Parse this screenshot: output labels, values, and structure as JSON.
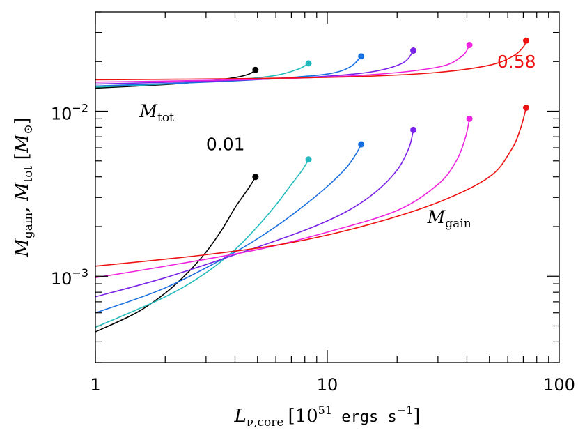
{
  "chart_data": {
    "type": "line",
    "xscale": "log",
    "yscale": "log",
    "xlim": [
      1,
      100
    ],
    "ylim": [
      0.0003,
      0.04
    ],
    "grid": false,
    "x_tick_labels": [
      {
        "value": 1,
        "label": "1"
      },
      {
        "value": 10,
        "label": "10"
      },
      {
        "value": 100,
        "label": "100"
      }
    ],
    "y_tick_labels": [
      {
        "value": 0.01,
        "base": "10",
        "exp": "−2"
      },
      {
        "value": 0.001,
        "base": "10",
        "exp": "−3"
      }
    ],
    "xlabel": {
      "sym": "L",
      "sub": "ν,core",
      "unit_open": "[10",
      "unit_sup": "51",
      "unit_mid": " ergs s",
      "unit_sup2": "−1",
      "unit_close": "]"
    },
    "ylabel": {
      "sym1": "M",
      "sub1": "gain",
      "sep": ",  ",
      "sym2": "M",
      "sub2": "tot",
      "unit_open": " [",
      "unit_sym": "M",
      "unit_sub": "⊙",
      "unit_close": "]"
    },
    "annotations": [
      {
        "id": "mtot",
        "sym": "M",
        "sub": "tot",
        "color": "#000000",
        "x": 1.55,
        "y": 0.0092
      },
      {
        "id": "mgain",
        "sym": "M",
        "sub": "gain",
        "color": "#000000",
        "x": 27,
        "y": 0.0021
      },
      {
        "id": "low",
        "text": "0.01",
        "color": "#000000",
        "x": 3.0,
        "y": 0.0058
      },
      {
        "id": "high",
        "text": "0.58",
        "color": "#ee1111",
        "x": 54,
        "y": 0.0184
      }
    ],
    "series": [
      {
        "color": "#000000",
        "tot": [
          [
            1,
            0.0138
          ],
          [
            2,
            0.0145
          ],
          [
            3,
            0.0152
          ],
          [
            4,
            0.016
          ],
          [
            4.6,
            0.0168
          ],
          [
            4.9,
            0.0178
          ]
        ],
        "gain": [
          [
            1,
            0.00046
          ],
          [
            1.5,
            0.0006
          ],
          [
            2,
            0.00079
          ],
          [
            2.5,
            0.00105
          ],
          [
            3,
            0.0014
          ],
          [
            3.5,
            0.0019
          ],
          [
            4,
            0.0026
          ],
          [
            4.5,
            0.0033
          ],
          [
            4.75,
            0.0037
          ],
          [
            4.9,
            0.004
          ]
        ],
        "end_tot": [
          4.9,
          0.0178
        ],
        "end_gain": [
          4.9,
          0.004
        ]
      },
      {
        "color": "#22bbbb",
        "tot": [
          [
            1,
            0.014
          ],
          [
            2,
            0.0146
          ],
          [
            4,
            0.0155
          ],
          [
            6,
            0.0165
          ],
          [
            7.5,
            0.018
          ],
          [
            8.3,
            0.0195
          ]
        ],
        "gain": [
          [
            1,
            0.00049
          ],
          [
            2,
            0.00075
          ],
          [
            3,
            0.00105
          ],
          [
            4,
            0.00145
          ],
          [
            5,
            0.002
          ],
          [
            6,
            0.0027
          ],
          [
            7,
            0.0036
          ],
          [
            7.8,
            0.0044
          ],
          [
            8.3,
            0.0051
          ]
        ],
        "end_tot": [
          8.3,
          0.0195
        ],
        "end_gain": [
          8.3,
          0.0051
        ]
      },
      {
        "color": "#1a6fdf",
        "tot": [
          [
            1,
            0.0142
          ],
          [
            3,
            0.015
          ],
          [
            6,
            0.0158
          ],
          [
            10,
            0.0168
          ],
          [
            12.5,
            0.0185
          ],
          [
            14,
            0.0215
          ]
        ],
        "gain": [
          [
            1,
            0.0006
          ],
          [
            2,
            0.00085
          ],
          [
            4,
            0.0014
          ],
          [
            6,
            0.002
          ],
          [
            8,
            0.0027
          ],
          [
            10,
            0.0035
          ],
          [
            12,
            0.0045
          ],
          [
            13.3,
            0.0055
          ],
          [
            14,
            0.0063
          ]
        ],
        "end_tot": [
          14,
          0.0215
        ],
        "end_gain": [
          14,
          0.0063
        ]
      },
      {
        "color": "#7a22e8",
        "tot": [
          [
            1,
            0.0146
          ],
          [
            3,
            0.0152
          ],
          [
            8,
            0.016
          ],
          [
            15,
            0.0172
          ],
          [
            21,
            0.0195
          ],
          [
            23.5,
            0.0233
          ]
        ],
        "gain": [
          [
            1,
            0.00075
          ],
          [
            2,
            0.00098
          ],
          [
            4,
            0.00135
          ],
          [
            8,
            0.0019
          ],
          [
            12,
            0.00245
          ],
          [
            16,
            0.0032
          ],
          [
            20,
            0.0044
          ],
          [
            22.5,
            0.006
          ],
          [
            23.5,
            0.0077
          ]
        ],
        "end_tot": [
          23.5,
          0.0233
        ],
        "end_gain": [
          23.5,
          0.0077
        ]
      },
      {
        "color": "#ee22dd",
        "tot": [
          [
            1,
            0.015
          ],
          [
            5,
            0.0156
          ],
          [
            15,
            0.0166
          ],
          [
            30,
            0.0185
          ],
          [
            38,
            0.0215
          ],
          [
            41,
            0.0252
          ]
        ],
        "gain": [
          [
            1,
            0.00098
          ],
          [
            2,
            0.00115
          ],
          [
            5,
            0.00145
          ],
          [
            10,
            0.00185
          ],
          [
            20,
            0.0025
          ],
          [
            30,
            0.0036
          ],
          [
            36,
            0.005
          ],
          [
            39.5,
            0.007
          ],
          [
            41,
            0.009
          ]
        ],
        "end_tot": [
          41,
          0.0252
        ],
        "end_gain": [
          41,
          0.009
        ]
      },
      {
        "color": "#ee1111",
        "tot": [
          [
            1,
            0.0155
          ],
          [
            5,
            0.0158
          ],
          [
            15,
            0.0163
          ],
          [
            30,
            0.0172
          ],
          [
            50,
            0.019
          ],
          [
            63,
            0.0215
          ],
          [
            70,
            0.0245
          ],
          [
            72,
            0.0268
          ]
        ],
        "gain": [
          [
            1,
            0.00115
          ],
          [
            3,
            0.00135
          ],
          [
            7,
            0.0016
          ],
          [
            15,
            0.00205
          ],
          [
            30,
            0.0028
          ],
          [
            50,
            0.004
          ],
          [
            62,
            0.0058
          ],
          [
            68,
            0.0078
          ],
          [
            72,
            0.0105
          ]
        ],
        "end_tot": [
          72,
          0.0268
        ],
        "end_gain": [
          72,
          0.0105
        ]
      }
    ]
  }
}
